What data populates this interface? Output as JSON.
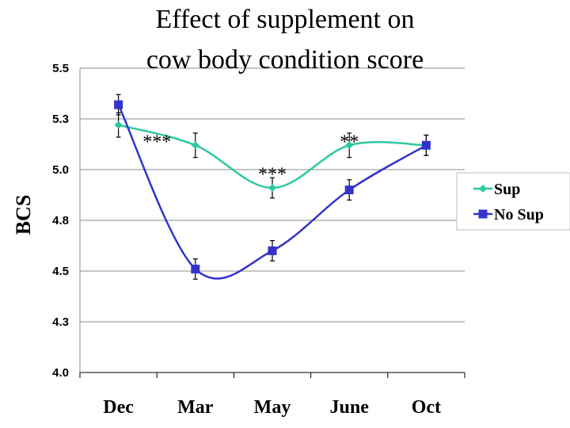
{
  "chart_data": {
    "type": "line",
    "title": "Effect of supplement on cow body condition score",
    "title_lines": [
      "Effect of supplement on",
      "cow body condition score"
    ],
    "xlabel": "",
    "ylabel": "BCS",
    "categories": [
      "Dec",
      "Mar",
      "May",
      "June",
      "Oct"
    ],
    "ylim": [
      4.0,
      5.5
    ],
    "yticks": [
      4.0,
      4.25,
      4.5,
      4.75,
      5.0,
      5.25,
      5.5
    ],
    "ytick_labels": [
      "4.0",
      "4.3",
      "4.5",
      "4.8",
      "5.0",
      "5.3",
      "5.5"
    ],
    "grid": true,
    "legend_position": "right",
    "series": [
      {
        "name": "Sup",
        "values": [
          5.22,
          5.12,
          4.91,
          5.12,
          5.12
        ],
        "error": [
          0.06,
          0.06,
          0.05,
          0.06,
          0.05
        ],
        "color": "#2dc9a0",
        "marker": "diamond",
        "smooth": true
      },
      {
        "name": "No Sup",
        "values": [
          5.32,
          4.51,
          4.6,
          4.9,
          5.12
        ],
        "error": [
          0.05,
          0.05,
          0.05,
          0.05,
          0.05
        ],
        "color": "#3333cc",
        "marker": "square",
        "smooth": true
      }
    ],
    "annotations": [
      {
        "text": "***",
        "category": "Mar",
        "offset": -0.5,
        "y": 5.17
      },
      {
        "text": "***",
        "category": "May",
        "offset": 0,
        "y": 5.01
      },
      {
        "text": "**",
        "category": "June",
        "offset": 0,
        "y": 5.17
      }
    ]
  }
}
